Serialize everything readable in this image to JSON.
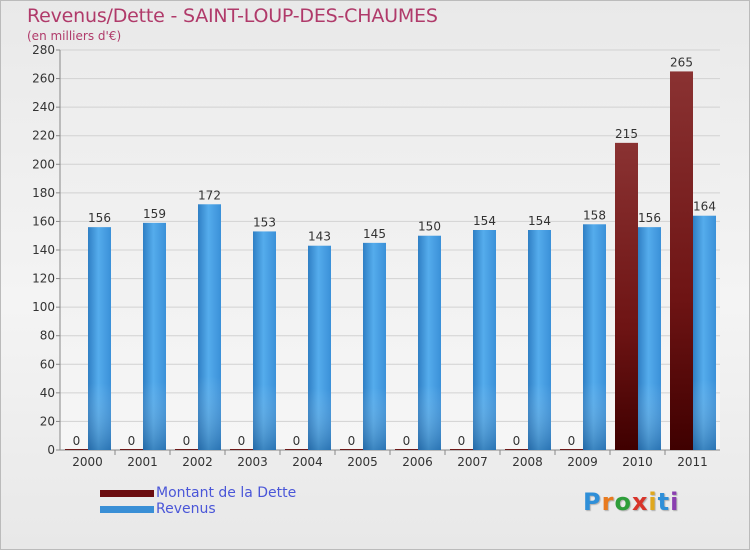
{
  "chart_data": {
    "type": "bar",
    "title": "Revenus/Dette - SAINT-LOUP-DES-CHAUMES",
    "subtitle": "(en milliers d'€)",
    "categories": [
      "2000",
      "2001",
      "2002",
      "2003",
      "2004",
      "2005",
      "2006",
      "2007",
      "2008",
      "2009",
      "2010",
      "2011"
    ],
    "series": [
      {
        "name": "Montant de la Dette",
        "color": "#6b0d10",
        "values": [
          0,
          0,
          0,
          0,
          0,
          0,
          0,
          0,
          0,
          0,
          215,
          265
        ]
      },
      {
        "name": "Revenus",
        "color": "#3a8fd6",
        "values": [
          156,
          159,
          172,
          153,
          143,
          145,
          150,
          154,
          154,
          158,
          156,
          164
        ]
      }
    ],
    "ylim": [
      0,
      280
    ],
    "yticks": [
      0,
      20,
      40,
      60,
      80,
      100,
      120,
      140,
      160,
      180,
      200,
      220,
      240,
      260,
      280
    ],
    "grid": true,
    "legend_position": "bottom-left"
  },
  "logo": {
    "letters": [
      "P",
      "r",
      "o",
      "x",
      "i",
      "t",
      "i"
    ],
    "colors": [
      "#2f8fd8",
      "#e87a1e",
      "#2e9e3a",
      "#d8342a",
      "#e0a81e",
      "#2f8fd8",
      "#8a3fb0"
    ]
  }
}
